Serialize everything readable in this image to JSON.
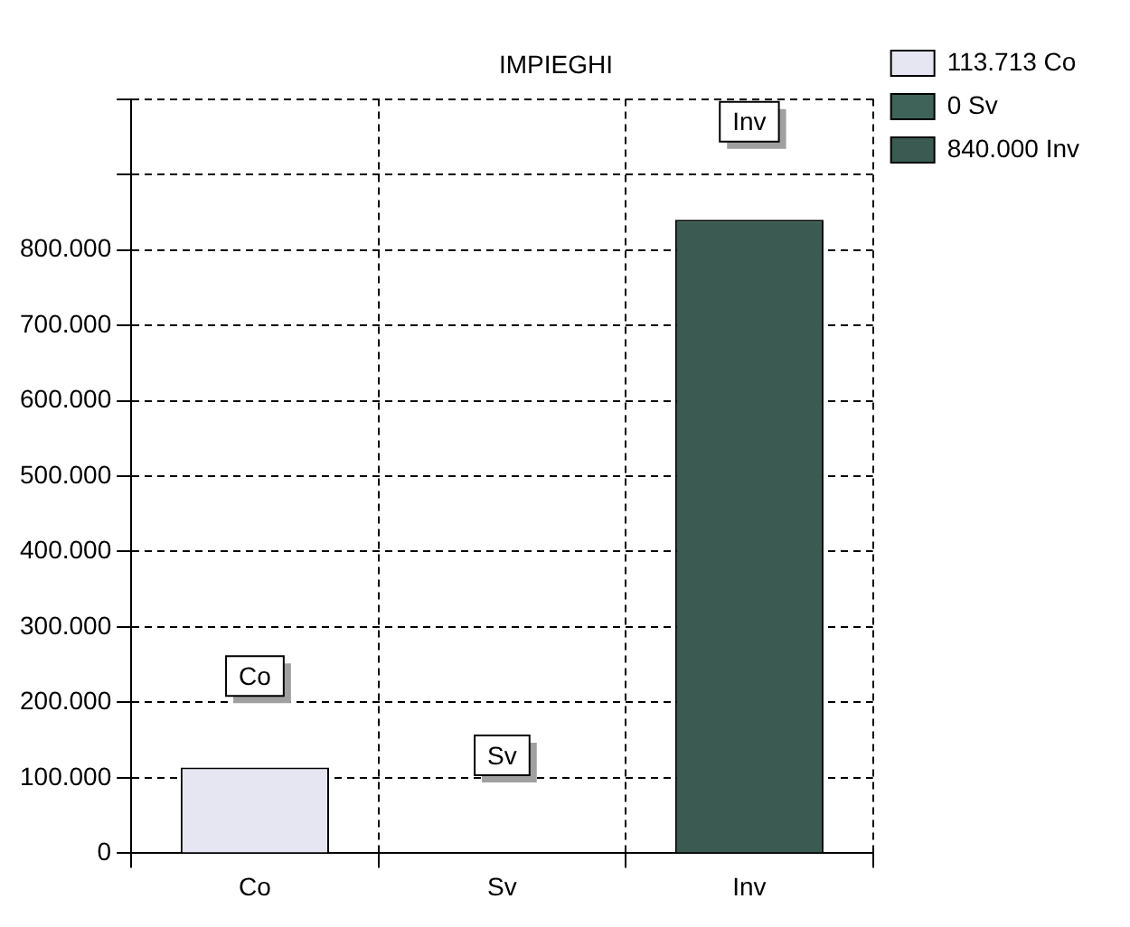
{
  "chart_data": {
    "type": "bar",
    "title": "IMPIEGHI",
    "categories": [
      "Co",
      "Sv",
      "Inv"
    ],
    "stacked": true,
    "series": [
      {
        "name": "113.713 Co",
        "color": "#e6e6f2",
        "values": [
          113713,
          null,
          null
        ]
      },
      {
        "name": "0 Sv",
        "color": "#3f6358",
        "values": [
          null,
          0,
          null
        ]
      },
      {
        "name": "840.000 Inv",
        "color": "#3a5a52",
        "values": [
          null,
          null,
          840000
        ]
      }
    ],
    "ylim": [
      0,
      1000000
    ],
    "yticks": [
      {
        "value": 0,
        "label": "0"
      },
      {
        "value": 100000,
        "label": "100.000"
      },
      {
        "value": 200000,
        "label": "200.000"
      },
      {
        "value": 300000,
        "label": "300.000"
      },
      {
        "value": 400000,
        "label": "400.000"
      },
      {
        "value": 500000,
        "label": "500.000"
      },
      {
        "value": 600000,
        "label": "600.000"
      },
      {
        "value": 700000,
        "label": "700.000"
      },
      {
        "value": 800000,
        "label": "800.000"
      },
      {
        "value": 900000,
        "label": null
      },
      {
        "value": 1000000,
        "label": null
      }
    ],
    "grid": true,
    "line_style": "dashed",
    "legend": "top right",
    "annotations": [
      {
        "text": "Co",
        "x": "Co",
        "y": 235000
      },
      {
        "text": "Sv",
        "x": "Sv",
        "y": 130000
      },
      {
        "text": "Inv",
        "x": "Inv",
        "y": 970000
      }
    ]
  }
}
